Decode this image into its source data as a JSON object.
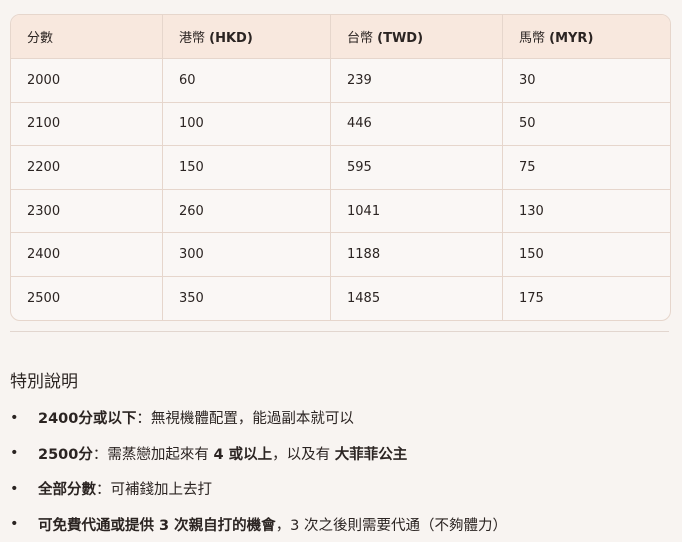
{
  "table": {
    "headers": [
      {
        "label": "分數",
        "code": ""
      },
      {
        "label": "港幣 ",
        "code": "(HKD)"
      },
      {
        "label": "台幣 ",
        "code": "(TWD)"
      },
      {
        "label": "馬幣 ",
        "code": "(MYR)"
      }
    ],
    "rows": [
      [
        "2000",
        "60",
        "239",
        "30"
      ],
      [
        "2100",
        "100",
        "446",
        "50"
      ],
      [
        "2200",
        "150",
        "595",
        "75"
      ],
      [
        "2300",
        "260",
        "1041",
        "130"
      ],
      [
        "2400",
        "300",
        "1188",
        "150"
      ],
      [
        "2500",
        "350",
        "1485",
        "175"
      ]
    ]
  },
  "notes": {
    "title": "特別說明",
    "items": [
      {
        "bold": "2400分或以下",
        "rest": "：無視機體配置，能過副本就可以"
      },
      {
        "bold": "2500分",
        "rest": "：需蒸戀加起來有 ",
        "bold2": "4 或以上",
        "rest2": "，以及有 ",
        "bold3": "大菲菲公主"
      },
      {
        "bold": "全部分數",
        "rest": "：可補錢加上去打"
      },
      {
        "bold": "可免費代通或提供 3 次親自打的機會",
        "rest": "，3 次之後則需要代通（不夠體力）"
      }
    ]
  }
}
